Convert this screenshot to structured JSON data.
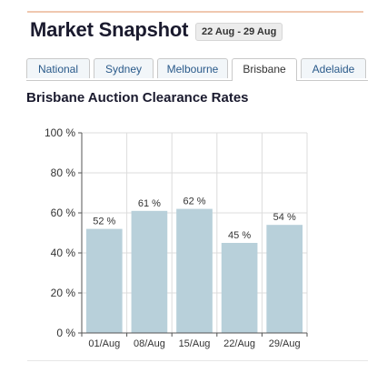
{
  "header": {
    "title": "Market Snapshot",
    "date_range": "22 Aug - 29 Aug"
  },
  "tabs": [
    {
      "label": "National",
      "active": false
    },
    {
      "label": "Sydney",
      "active": false
    },
    {
      "label": "Melbourne",
      "active": false
    },
    {
      "label": "Brisbane",
      "active": true
    },
    {
      "label": "Adelaide",
      "active": false
    }
  ],
  "section_title": "Brisbane Auction Clearance Rates",
  "colors": {
    "bar": "#b8d0da",
    "grid": "#dcdcdc",
    "axis": "#555555"
  },
  "chart_data": {
    "type": "bar",
    "title": "",
    "xlabel": "",
    "ylabel": "",
    "categories": [
      "01/Aug",
      "08/Aug",
      "15/Aug",
      "22/Aug",
      "29/Aug"
    ],
    "values": [
      52,
      61,
      62,
      45,
      54
    ],
    "data_labels": [
      "52 %",
      "61 %",
      "62 %",
      "45 %",
      "54 %"
    ],
    "ylim": [
      0,
      100
    ],
    "yticks": [
      0,
      20,
      40,
      60,
      80,
      100
    ],
    "ytick_labels": [
      "0 %",
      "20 %",
      "40 %",
      "60 %",
      "80 %",
      "100 %"
    ],
    "grid": true,
    "legend": "none"
  }
}
